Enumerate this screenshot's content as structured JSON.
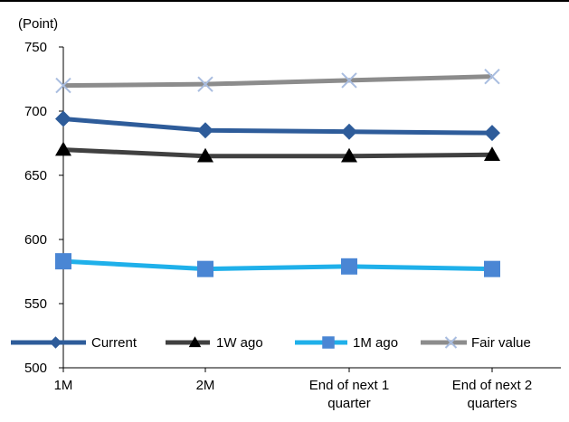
{
  "chart_data": {
    "type": "line",
    "title": "",
    "xlabel": "",
    "ylabel": "(Point)",
    "categories": [
      "1M",
      "2M",
      "End of next 1\nquarter",
      "End of next 2\nquarters"
    ],
    "ylim": [
      500,
      750
    ],
    "yticks": [
      500,
      550,
      600,
      650,
      700,
      750
    ],
    "grid": false,
    "legend_position": "bottom-inside",
    "series": [
      {
        "name": "Current",
        "values": [
          694,
          685,
          684,
          683
        ],
        "color": "#2e5c9a",
        "marker": "diamond"
      },
      {
        "name": "1W ago",
        "values": [
          670,
          665,
          665,
          666
        ],
        "color": "#404040",
        "marker": "triangle"
      },
      {
        "name": "1M ago",
        "values": [
          583,
          577,
          579,
          577
        ],
        "color": "#1fb0ea",
        "marker": "square",
        "marker_color": "#4a86d4"
      },
      {
        "name": "Fair value",
        "values": [
          720,
          721,
          724,
          727
        ],
        "color": "#8c8c8c",
        "marker": "x",
        "marker_color": "#a9bde0"
      }
    ]
  }
}
